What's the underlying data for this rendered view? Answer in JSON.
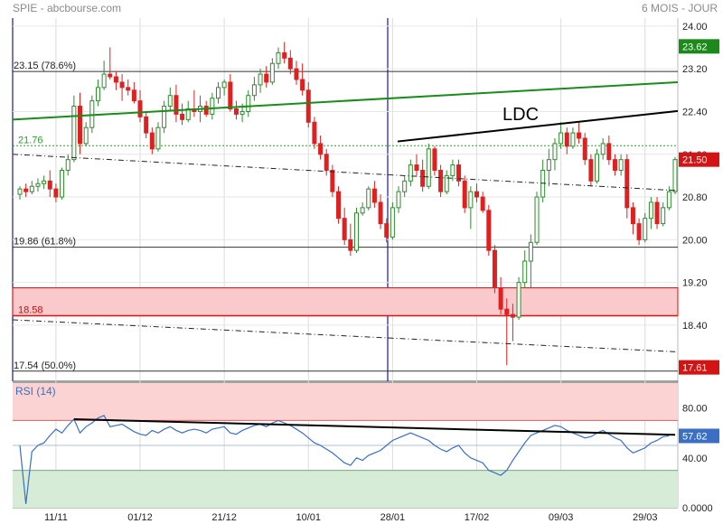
{
  "header": {
    "left": "SPIE - abcbourse.com",
    "right": "6 MOIS - JOUR"
  },
  "colors": {
    "up": "#2e8b2e",
    "down": "#e02020",
    "neutral": "#1f3f8f",
    "green_trend": "#1a8c1a",
    "black_trend": "#000000",
    "red_zone_fill": "#f9c9cb",
    "red_line": "#e01010",
    "rsi_line": "#3a6fc4",
    "rsi_overbought_fill": "#fbd3d3",
    "rsi_oversold_fill": "#d6ecd6",
    "badge_green": "#1b8a1b",
    "badge_red": "#d21414",
    "badge_blue": "#3a6fc4"
  },
  "chart_data": [
    {
      "type": "candlestick",
      "title": "SPIE - abcbourse.com",
      "period": "6 MOIS - JOUR",
      "ylim": [
        17.35,
        24.15
      ],
      "yticks": [
        "24.00",
        "23.20",
        "22.40",
        "21.60",
        "20.80",
        "20.00",
        "19.20",
        "18.40"
      ],
      "xticks": [
        "11/11",
        "01/12",
        "21/12",
        "10/01",
        "28/01",
        "17/02",
        "09/03",
        "29/03"
      ],
      "xtick_index": [
        6,
        20,
        34,
        48,
        62,
        76,
        90,
        104
      ],
      "levels": [
        {
          "value": 23.15,
          "label": "23.15  (78.6%)"
        },
        {
          "value": 19.86,
          "label": "19.86  (61.8%)"
        },
        {
          "value": 17.54,
          "label": "17.54  (50.0%)"
        },
        {
          "value": 21.76,
          "label": "21.76"
        },
        {
          "value": 18.58,
          "label": "18.58"
        }
      ],
      "support_zone": [
        18.58,
        19.1
      ],
      "annotation": "LDC",
      "last_price": "21.50",
      "badge_high": "23.62",
      "badge_low": "17.61",
      "candles": [
        [
          20.85,
          21.0,
          20.75,
          20.95
        ],
        [
          20.95,
          21.05,
          20.8,
          20.9
        ],
        [
          20.9,
          21.1,
          20.85,
          21.0
        ],
        [
          21.0,
          21.15,
          20.9,
          21.05
        ],
        [
          21.05,
          21.2,
          20.95,
          21.1
        ],
        [
          21.1,
          21.3,
          20.8,
          20.95
        ],
        [
          20.95,
          21.05,
          20.7,
          20.8
        ],
        [
          20.8,
          21.35,
          20.75,
          21.3
        ],
        [
          21.3,
          21.6,
          21.2,
          21.5
        ],
        [
          21.5,
          22.7,
          21.45,
          22.5
        ],
        [
          22.5,
          22.75,
          21.6,
          21.8
        ],
        [
          21.8,
          22.2,
          21.75,
          22.1
        ],
        [
          22.1,
          22.7,
          22.0,
          22.6
        ],
        [
          22.6,
          23.0,
          22.5,
          22.85
        ],
        [
          22.85,
          23.35,
          22.8,
          23.1
        ],
        [
          23.1,
          23.6,
          23.0,
          23.05
        ],
        [
          23.05,
          23.15,
          22.8,
          22.95
        ],
        [
          22.95,
          23.1,
          22.6,
          22.85
        ],
        [
          22.85,
          23.0,
          22.7,
          22.8
        ],
        [
          22.8,
          22.95,
          22.55,
          22.6
        ],
        [
          22.6,
          22.8,
          22.2,
          22.3
        ],
        [
          22.3,
          22.4,
          21.9,
          22.0
        ],
        [
          22.0,
          22.1,
          21.6,
          21.7
        ],
        [
          21.7,
          22.2,
          21.65,
          22.1
        ],
        [
          22.1,
          22.6,
          22.0,
          22.5
        ],
        [
          22.5,
          22.85,
          22.4,
          22.7
        ],
        [
          22.7,
          22.9,
          22.2,
          22.35
        ],
        [
          22.35,
          22.55,
          22.15,
          22.25
        ],
        [
          22.25,
          22.6,
          22.2,
          22.45
        ],
        [
          22.45,
          22.8,
          22.3,
          22.4
        ],
        [
          22.4,
          22.7,
          22.2,
          22.5
        ],
        [
          22.5,
          22.6,
          22.3,
          22.35
        ],
        [
          22.35,
          22.75,
          22.25,
          22.65
        ],
        [
          22.65,
          22.95,
          22.55,
          22.85
        ],
        [
          22.85,
          23.0,
          22.7,
          22.95
        ],
        [
          22.95,
          23.1,
          22.4,
          22.45
        ],
        [
          22.45,
          22.6,
          22.25,
          22.35
        ],
        [
          22.35,
          22.55,
          22.2,
          22.4
        ],
        [
          22.4,
          22.8,
          22.3,
          22.7
        ],
        [
          22.7,
          23.05,
          22.6,
          22.9
        ],
        [
          22.9,
          23.2,
          22.75,
          23.1
        ],
        [
          23.1,
          23.25,
          22.85,
          22.95
        ],
        [
          22.95,
          23.4,
          22.9,
          23.3
        ],
        [
          23.3,
          23.6,
          23.2,
          23.5
        ],
        [
          23.5,
          23.7,
          23.3,
          23.4
        ],
        [
          23.4,
          23.55,
          23.1,
          23.2
        ],
        [
          23.2,
          23.35,
          22.9,
          23.0
        ],
        [
          23.0,
          23.3,
          22.7,
          22.8
        ],
        [
          22.8,
          22.95,
          22.1,
          22.2
        ],
        [
          22.2,
          22.3,
          21.7,
          21.8
        ],
        [
          21.8,
          21.95,
          21.5,
          21.6
        ],
        [
          21.6,
          21.7,
          21.2,
          21.3
        ],
        [
          21.3,
          21.4,
          20.8,
          20.9
        ],
        [
          20.9,
          21.0,
          20.3,
          20.4
        ],
        [
          20.4,
          20.6,
          19.9,
          20.0
        ],
        [
          20.0,
          20.3,
          19.7,
          19.8
        ],
        [
          19.8,
          20.6,
          19.75,
          20.5
        ],
        [
          20.5,
          20.7,
          20.45,
          20.6
        ],
        [
          20.6,
          21.0,
          20.55,
          20.95
        ],
        [
          20.95,
          21.1,
          20.6,
          20.7
        ],
        [
          20.7,
          20.85,
          20.2,
          20.3
        ],
        [
          20.3,
          20.4,
          19.95,
          20.05
        ],
        [
          20.05,
          20.7,
          20.0,
          20.6
        ],
        [
          20.6,
          21.0,
          20.5,
          20.9
        ],
        [
          20.9,
          21.2,
          20.8,
          21.1
        ],
        [
          21.1,
          21.5,
          21.0,
          21.4
        ],
        [
          21.4,
          21.6,
          21.2,
          21.3
        ],
        [
          21.3,
          21.5,
          20.9,
          21.0
        ],
        [
          21.0,
          21.8,
          20.95,
          21.7
        ],
        [
          21.7,
          21.75,
          21.2,
          21.3
        ],
        [
          21.3,
          21.4,
          20.8,
          20.9
        ],
        [
          20.9,
          21.3,
          20.85,
          21.2
        ],
        [
          21.2,
          21.5,
          21.1,
          21.4
        ],
        [
          21.4,
          21.5,
          21.0,
          21.1
        ],
        [
          21.1,
          21.2,
          20.5,
          20.6
        ],
        [
          20.6,
          21.0,
          20.2,
          20.9
        ],
        [
          20.9,
          21.05,
          20.7,
          20.8
        ],
        [
          20.8,
          20.9,
          20.5,
          20.55
        ],
        [
          20.55,
          20.65,
          19.7,
          19.8
        ],
        [
          19.8,
          19.9,
          19.0,
          19.1
        ],
        [
          19.1,
          19.3,
          18.6,
          18.7
        ],
        [
          18.7,
          18.9,
          17.65,
          18.6
        ],
        [
          18.6,
          18.8,
          18.1,
          18.55
        ],
        [
          18.55,
          19.3,
          18.5,
          19.2
        ],
        [
          19.2,
          19.8,
          19.1,
          19.6
        ],
        [
          19.6,
          20.1,
          19.1,
          19.95
        ],
        [
          19.95,
          20.9,
          19.9,
          20.8
        ],
        [
          20.8,
          21.5,
          20.7,
          21.3
        ],
        [
          21.3,
          21.7,
          21.0,
          21.5
        ],
        [
          21.5,
          21.9,
          21.3,
          21.8
        ],
        [
          21.8,
          22.2,
          21.7,
          22.0
        ],
        [
          22.0,
          22.1,
          21.6,
          21.75
        ],
        [
          21.75,
          22.1,
          21.7,
          22.0
        ],
        [
          22.0,
          22.2,
          21.8,
          21.9
        ],
        [
          21.9,
          22.0,
          21.4,
          21.5
        ],
        [
          21.5,
          21.6,
          21.0,
          21.1
        ],
        [
          21.1,
          21.7,
          21.05,
          21.6
        ],
        [
          21.6,
          21.9,
          21.5,
          21.8
        ],
        [
          21.8,
          21.95,
          21.4,
          21.5
        ],
        [
          21.5,
          21.6,
          21.2,
          21.3
        ],
        [
          21.3,
          21.6,
          21.2,
          21.5
        ],
        [
          21.5,
          21.6,
          20.4,
          20.6
        ],
        [
          20.6,
          20.7,
          20.1,
          20.3
        ],
        [
          20.3,
          20.4,
          19.9,
          20.0
        ],
        [
          20.0,
          20.5,
          19.95,
          20.4
        ],
        [
          20.4,
          20.8,
          20.2,
          20.7
        ],
        [
          20.7,
          20.8,
          20.2,
          20.3
        ],
        [
          20.3,
          20.7,
          20.25,
          20.6
        ],
        [
          20.6,
          21.0,
          20.55,
          20.9
        ],
        [
          20.9,
          21.55,
          20.85,
          21.5
        ]
      ]
    },
    {
      "type": "line",
      "title": "RSI (14)",
      "ylim": [
        0,
        100
      ],
      "yticks": [
        "80.00",
        "40.00",
        "0.0000"
      ],
      "overbought": 70,
      "oversold": 30,
      "last_value": "57.62",
      "series": [
        {
          "name": "RSI (14)",
          "values": [
            50,
            3,
            45,
            50,
            52,
            58,
            63,
            60,
            66,
            71,
            60,
            65,
            68,
            72,
            74,
            65,
            66,
            67,
            64,
            61,
            59,
            58,
            62,
            60,
            63,
            65,
            62,
            60,
            62,
            63,
            62,
            60,
            63,
            64,
            65,
            60,
            59,
            62,
            64,
            66,
            67,
            65,
            68,
            70,
            68,
            66,
            63,
            60,
            56,
            52,
            50,
            47,
            44,
            40,
            36,
            34,
            40,
            38,
            42,
            44,
            46,
            50,
            54,
            56,
            58,
            60,
            58,
            56,
            54,
            50,
            47,
            45,
            48,
            50,
            44,
            40,
            38,
            36,
            30,
            28,
            26,
            30,
            38,
            45,
            52,
            58,
            60,
            62,
            64,
            66,
            65,
            62,
            60,
            58,
            56,
            57,
            60,
            62,
            59,
            56,
            54,
            48,
            44,
            46,
            48,
            52,
            54,
            57,
            57.62
          ]
        }
      ]
    }
  ]
}
